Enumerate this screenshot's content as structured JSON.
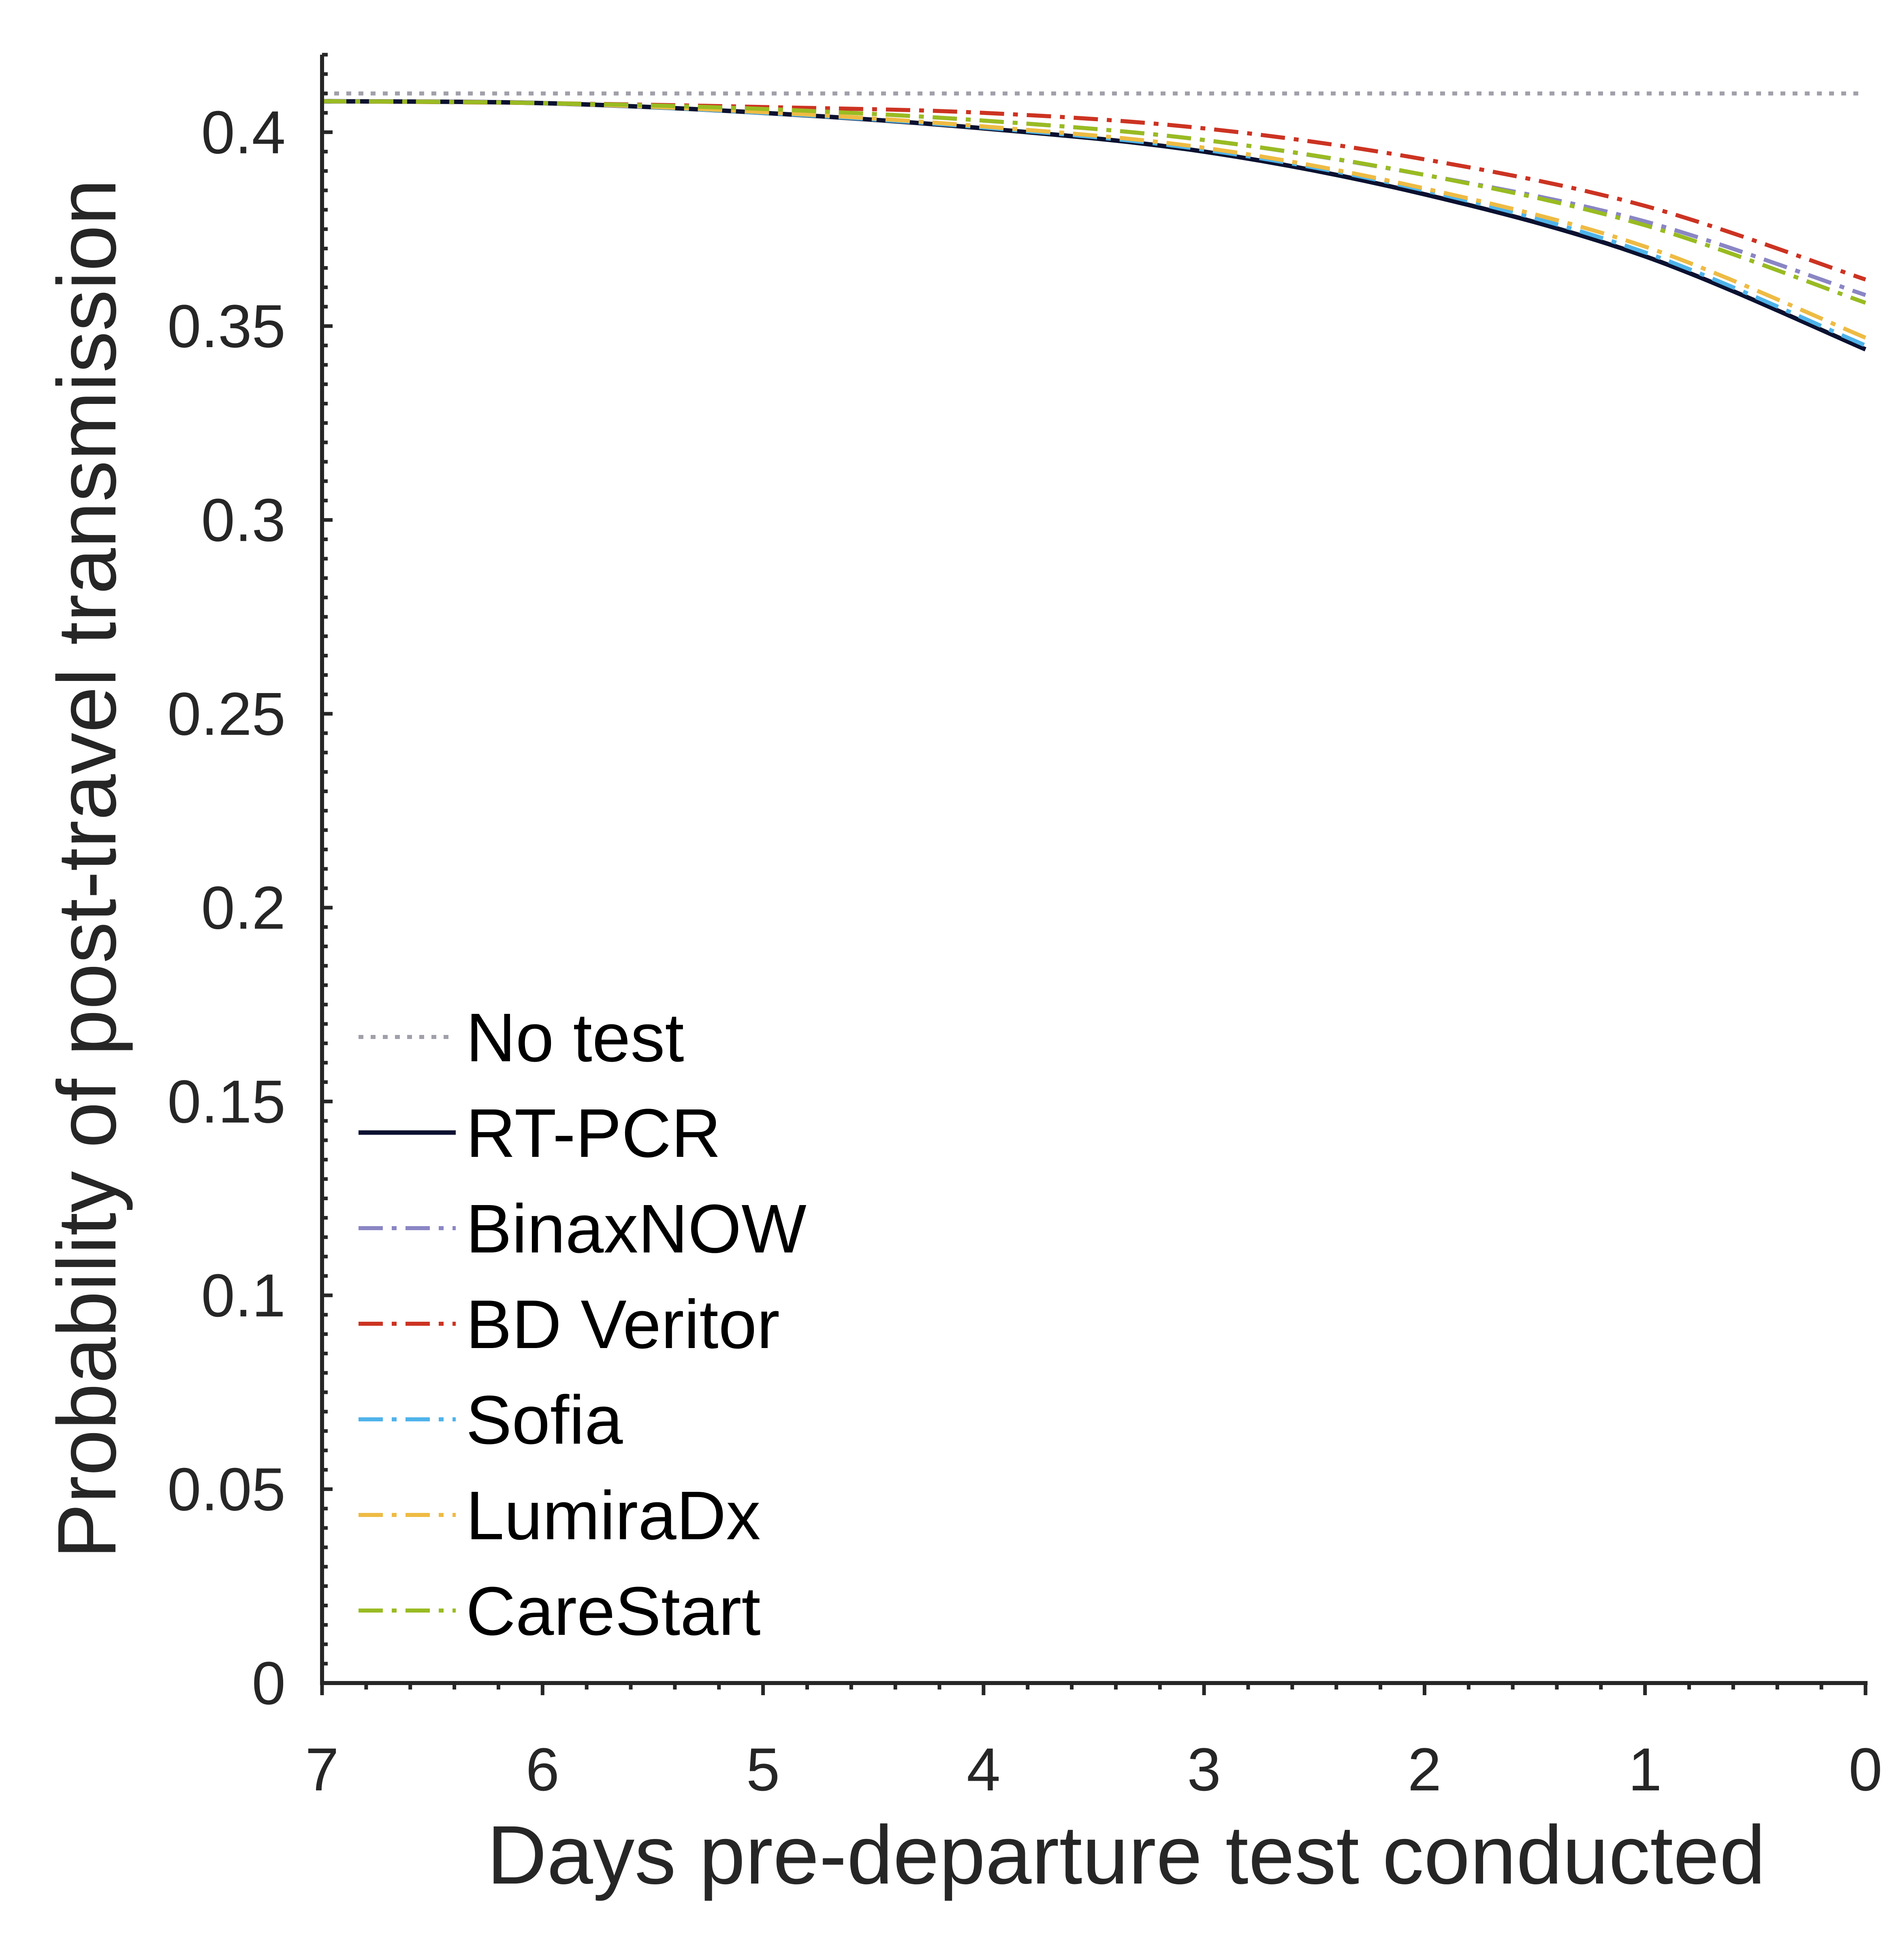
{
  "chart_data": {
    "type": "line",
    "xlabel": "Days pre-departure test conducted",
    "ylabel": "Probability of post-travel transmission",
    "xlim": [
      7,
      0
    ],
    "ylim": [
      0,
      0.42
    ],
    "x_reversed": true,
    "x_ticks": [
      7,
      6,
      5,
      4,
      3,
      2,
      1,
      0
    ],
    "x_tick_labels": [
      "7",
      "6",
      "5",
      "4",
      "3",
      "2",
      "1",
      "0"
    ],
    "y_ticks": [
      0,
      0.05,
      0.1,
      0.15,
      0.2,
      0.25,
      0.3,
      0.35,
      0.4
    ],
    "y_tick_labels": [
      "0",
      "0.05",
      "0.1",
      "0.15",
      "0.2",
      "0.25",
      "0.3",
      "0.35",
      "0.4"
    ],
    "grid": false,
    "legend_position": "lower-left",
    "x": [
      7,
      6,
      5,
      4,
      3,
      2,
      1,
      0
    ],
    "series": [
      {
        "name": "No test",
        "color": "#a0a0aa",
        "dash": "dotted",
        "values": [
          0.41,
          0.41,
          0.41,
          0.41,
          0.41,
          0.41,
          0.41,
          0.41
        ]
      },
      {
        "name": "RT-PCR",
        "color": "#0b1130",
        "dash": "solid",
        "values": [
          0.408,
          0.4075,
          0.405,
          0.401,
          0.395,
          0.384,
          0.368,
          0.344
        ]
      },
      {
        "name": "BinaxNOW",
        "color": "#8a86c4",
        "dash": "dashdot",
        "values": [
          0.408,
          0.4075,
          0.406,
          0.403,
          0.398,
          0.389,
          0.377,
          0.358
        ]
      },
      {
        "name": "BD Veritor",
        "color": "#cc3322",
        "dash": "dashdot",
        "values": [
          0.408,
          0.4075,
          0.4065,
          0.405,
          0.401,
          0.393,
          0.381,
          0.362
        ]
      },
      {
        "name": "Sofia",
        "color": "#4fb3ea",
        "dash": "dashdot",
        "values": [
          0.408,
          0.4075,
          0.405,
          0.4012,
          0.3955,
          0.385,
          0.369,
          0.345
        ]
      },
      {
        "name": "LumiraDx",
        "color": "#eebb44",
        "dash": "dashdot",
        "values": [
          0.408,
          0.4075,
          0.4052,
          0.4015,
          0.396,
          0.3855,
          0.3705,
          0.347
        ]
      },
      {
        "name": "CareStart",
        "color": "#99bb22",
        "dash": "dashdot",
        "values": [
          0.408,
          0.4075,
          0.406,
          0.403,
          0.398,
          0.389,
          0.376,
          0.356
        ]
      }
    ]
  }
}
